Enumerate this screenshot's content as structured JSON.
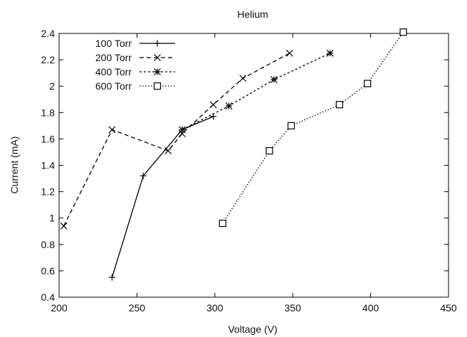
{
  "chart_data": {
    "type": "line",
    "title": "Helium",
    "xlabel": "Voltage (V)",
    "ylabel": "Current (mA)",
    "xlim": [
      200,
      450
    ],
    "ylim": [
      0.4,
      2.4
    ],
    "xticks": [
      200,
      250,
      300,
      350,
      400,
      450
    ],
    "yticks": [
      0.4,
      0.6,
      0.8,
      1,
      1.2,
      1.4,
      1.6,
      1.8,
      2,
      2.2,
      2.4
    ],
    "grid": false,
    "legend_position": "top-left",
    "series": [
      {
        "name": "100 Torr",
        "marker": "plus",
        "dash": "solid",
        "x": [
          234,
          254,
          279,
          299
        ],
        "y": [
          0.55,
          1.32,
          1.67,
          1.77
        ]
      },
      {
        "name": "200 Torr",
        "marker": "x",
        "dash": "dashed",
        "x": [
          203,
          234,
          270,
          279,
          299,
          318,
          348
        ],
        "y": [
          0.94,
          1.67,
          1.51,
          1.64,
          1.86,
          2.06,
          2.25
        ]
      },
      {
        "name": "400 Torr",
        "marker": "star",
        "dash": "short-dashed",
        "x": [
          279,
          309,
          338,
          374
        ],
        "y": [
          1.67,
          1.85,
          2.05,
          2.25
        ]
      },
      {
        "name": "600 Torr",
        "marker": "square",
        "dash": "dotted",
        "x": [
          305,
          335,
          349,
          380,
          398,
          421
        ],
        "y": [
          0.96,
          1.51,
          1.7,
          1.86,
          2.02,
          2.41
        ]
      }
    ]
  }
}
